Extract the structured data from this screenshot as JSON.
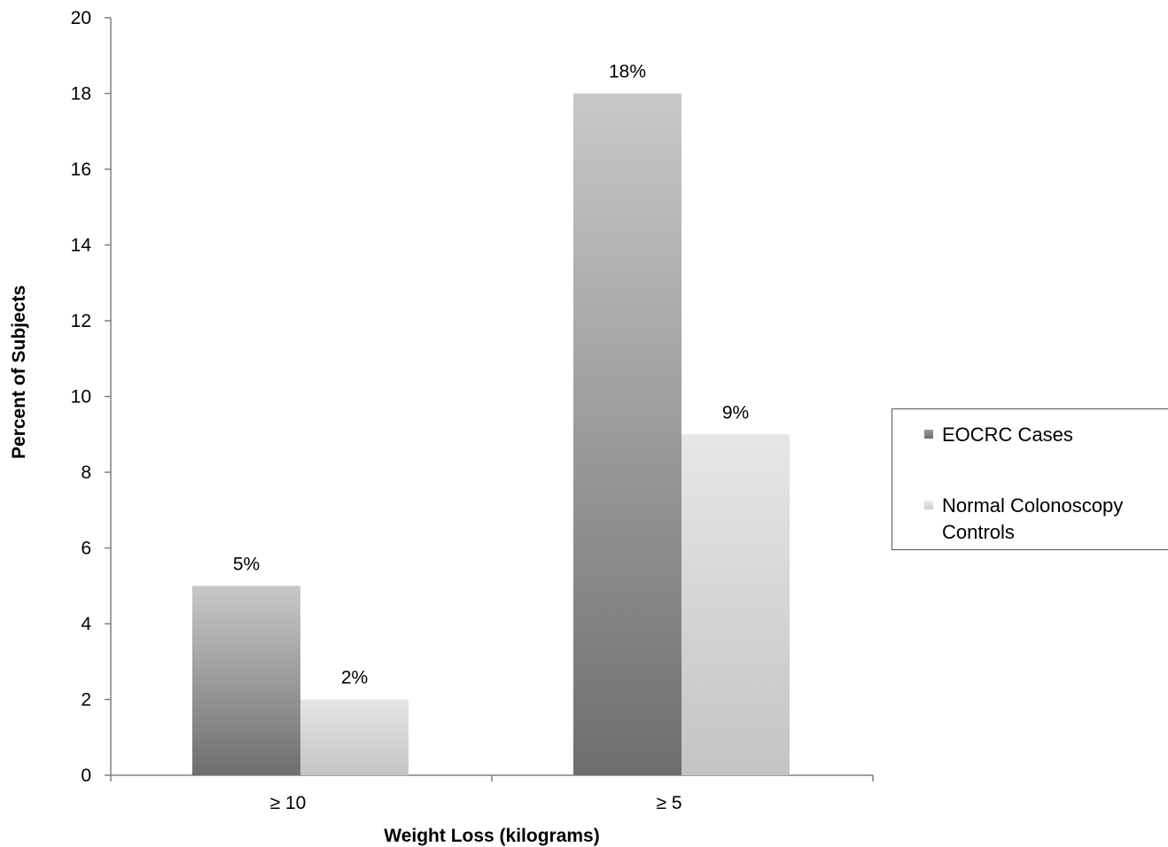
{
  "chart_data": {
    "type": "bar",
    "categories": [
      "≥ 10",
      "≥ 5"
    ],
    "series": [
      {
        "name": "EOCRC Cases",
        "values": [
          5,
          18
        ],
        "labels": [
          "5%",
          "18%"
        ]
      },
      {
        "name": "Normal Colonoscopy Controls",
        "values": [
          2,
          9
        ],
        "labels": [
          "2%",
          "9%"
        ]
      }
    ],
    "xlabel": "Weight Loss (kilograms)",
    "ylabel": "Percent of Subjects",
    "ylim": [
      0,
      20
    ],
    "yticks": [
      0,
      2,
      4,
      6,
      8,
      10,
      12,
      14,
      16,
      18,
      20
    ],
    "grid": false,
    "legend": "right",
    "colors": {
      "series0_top": "#c8c8c8",
      "series0_bottom": "#6e6e6e",
      "series1_top": "#e6e6e6",
      "series1_bottom": "#c4c4c4",
      "axis": "#808080"
    }
  }
}
